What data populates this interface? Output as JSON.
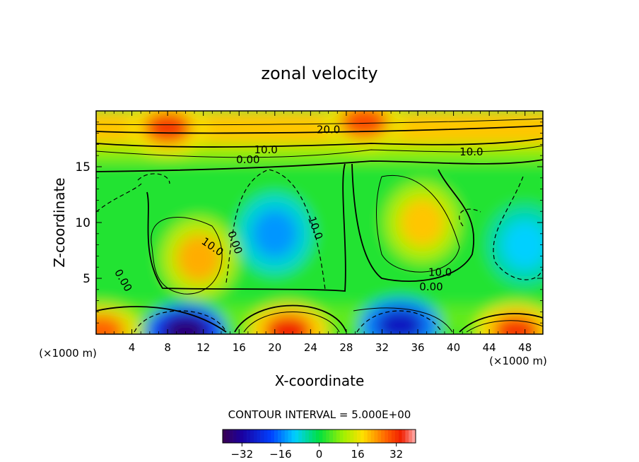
{
  "chart_data": {
    "type": "heatmap",
    "title": "zonal velocity",
    "xlabel": "X-coordinate",
    "ylabel": "Z-coordinate",
    "x_unit": "(×1000 m)",
    "y_unit": "(×1000 m)",
    "xlim": [
      0,
      50
    ],
    "ylim": [
      0,
      20
    ],
    "x_ticks": [
      4,
      8,
      12,
      16,
      20,
      24,
      28,
      32,
      36,
      40,
      44,
      48
    ],
    "y_ticks": [
      5,
      10,
      15
    ],
    "contour_interval_text": "CONTOUR INTERVAL = 5.000E+00",
    "contour_labels": [
      {
        "text": "20.0",
        "x": 26,
        "z": 18.3
      },
      {
        "text": "10.0",
        "x": 19,
        "z": 16.5
      },
      {
        "text": "0.00",
        "x": 17,
        "z": 15.6
      },
      {
        "text": "10.0",
        "x": 42,
        "z": 16.3
      },
      {
        "text": "10.0",
        "x": 13,
        "z": 7.8,
        "rotate": 35
      },
      {
        "text": "0.00",
        "x": 15.5,
        "z": 8.2,
        "rotate": 70
      },
      {
        "text": "10.0",
        "x": 24.5,
        "z": 9.5,
        "rotate": 70
      },
      {
        "text": "0.00",
        "x": 3,
        "z": 4.8,
        "rotate": 60
      },
      {
        "text": "10.0",
        "x": 38.5,
        "z": 5.5
      },
      {
        "text": "0.00",
        "x": 37.5,
        "z": 4.2
      }
    ],
    "field_features": [
      {
        "kind": "max",
        "x": 30,
        "z": 19,
        "value": 30
      },
      {
        "kind": "max",
        "x": 8,
        "z": 18.5,
        "value": 32
      },
      {
        "kind": "min",
        "x": 10,
        "z": 0.3,
        "value": -36
      },
      {
        "kind": "max",
        "x": 21.5,
        "z": 0.3,
        "value": 34
      },
      {
        "kind": "min",
        "x": 34,
        "z": 0.8,
        "value": -28
      },
      {
        "kind": "max",
        "x": 47,
        "z": 0.3,
        "value": 32
      },
      {
        "kind": "max",
        "x": 0.5,
        "z": 0.3,
        "value": 28
      },
      {
        "kind": "max",
        "x": 11.5,
        "z": 6.8,
        "value": 22
      },
      {
        "kind": "max",
        "x": 36.5,
        "z": 10,
        "value": 20
      },
      {
        "kind": "min",
        "x": 20,
        "z": 9,
        "value": -14
      },
      {
        "kind": "min",
        "x": 48,
        "z": 8,
        "value": -10
      }
    ],
    "colorbar": {
      "range": [
        -40,
        40
      ],
      "ticks": [
        "−32",
        "−16",
        "0",
        "16",
        "32"
      ],
      "tick_values": [
        -32,
        -16,
        0,
        16,
        32
      ]
    },
    "grid": false,
    "legend": "none"
  }
}
